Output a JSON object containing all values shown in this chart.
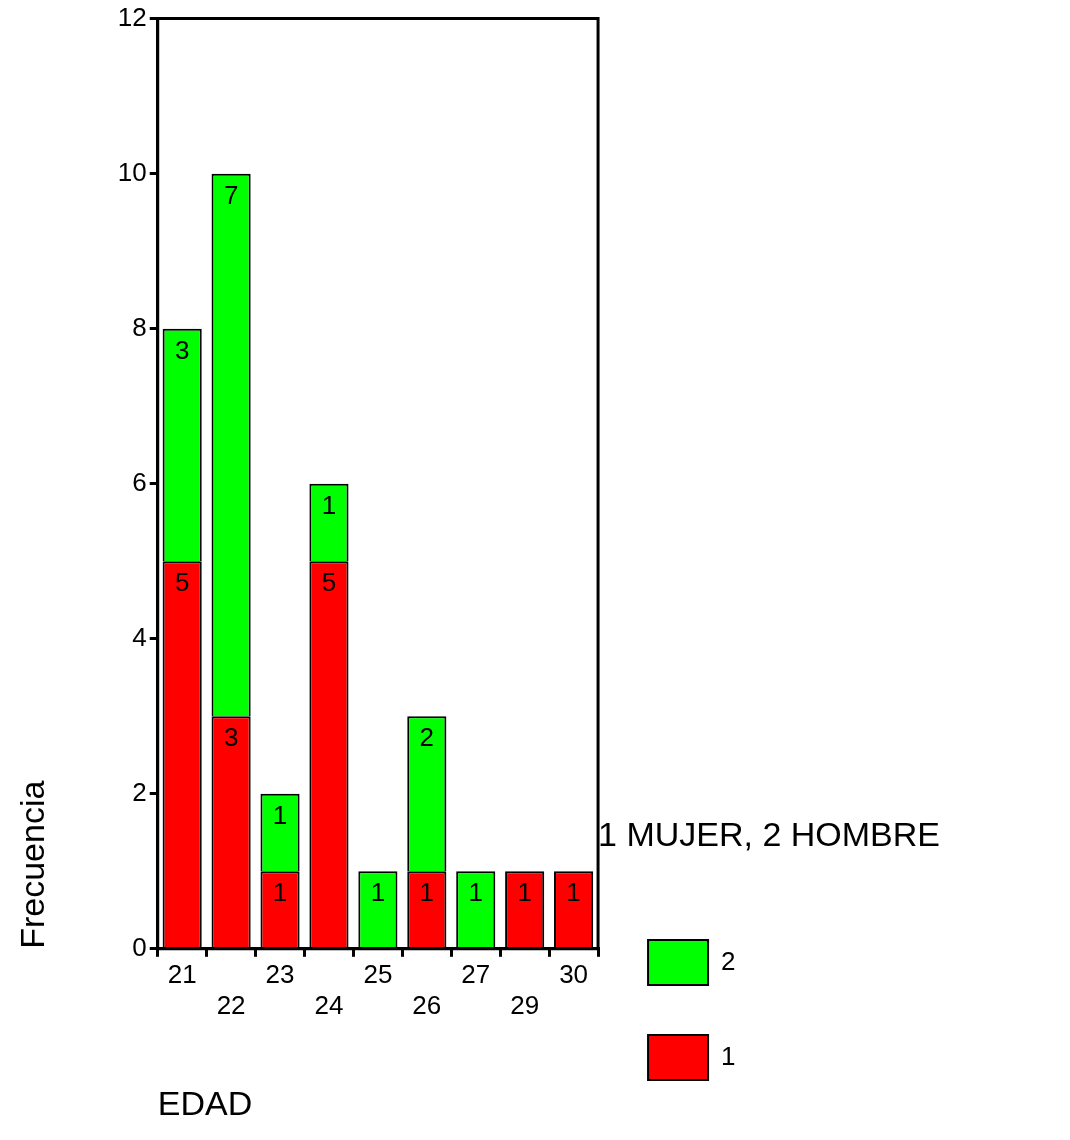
{
  "chart_data": {
    "type": "bar",
    "stacked": true,
    "xlabel": "EDAD",
    "ylabel": "Frecuencia",
    "legend_title": "1 MUJER, 2 HOMBRE",
    "legend": "right",
    "grid": false,
    "data_labels": true,
    "categories": [
      "21",
      "22",
      "23",
      "24",
      "25",
      "26",
      "27",
      "29",
      "30"
    ],
    "series": [
      {
        "name": "1",
        "color": "#ff0000",
        "values": [
          5,
          3,
          1,
          5,
          null,
          1,
          null,
          1,
          1
        ]
      },
      {
        "name": "2",
        "color": "#00ff00",
        "values": [
          3,
          7,
          1,
          1,
          1,
          2,
          1,
          null,
          null
        ]
      }
    ],
    "ylim": [
      0,
      12
    ],
    "yticks": [
      0,
      2,
      4,
      6,
      8,
      10,
      12
    ]
  }
}
